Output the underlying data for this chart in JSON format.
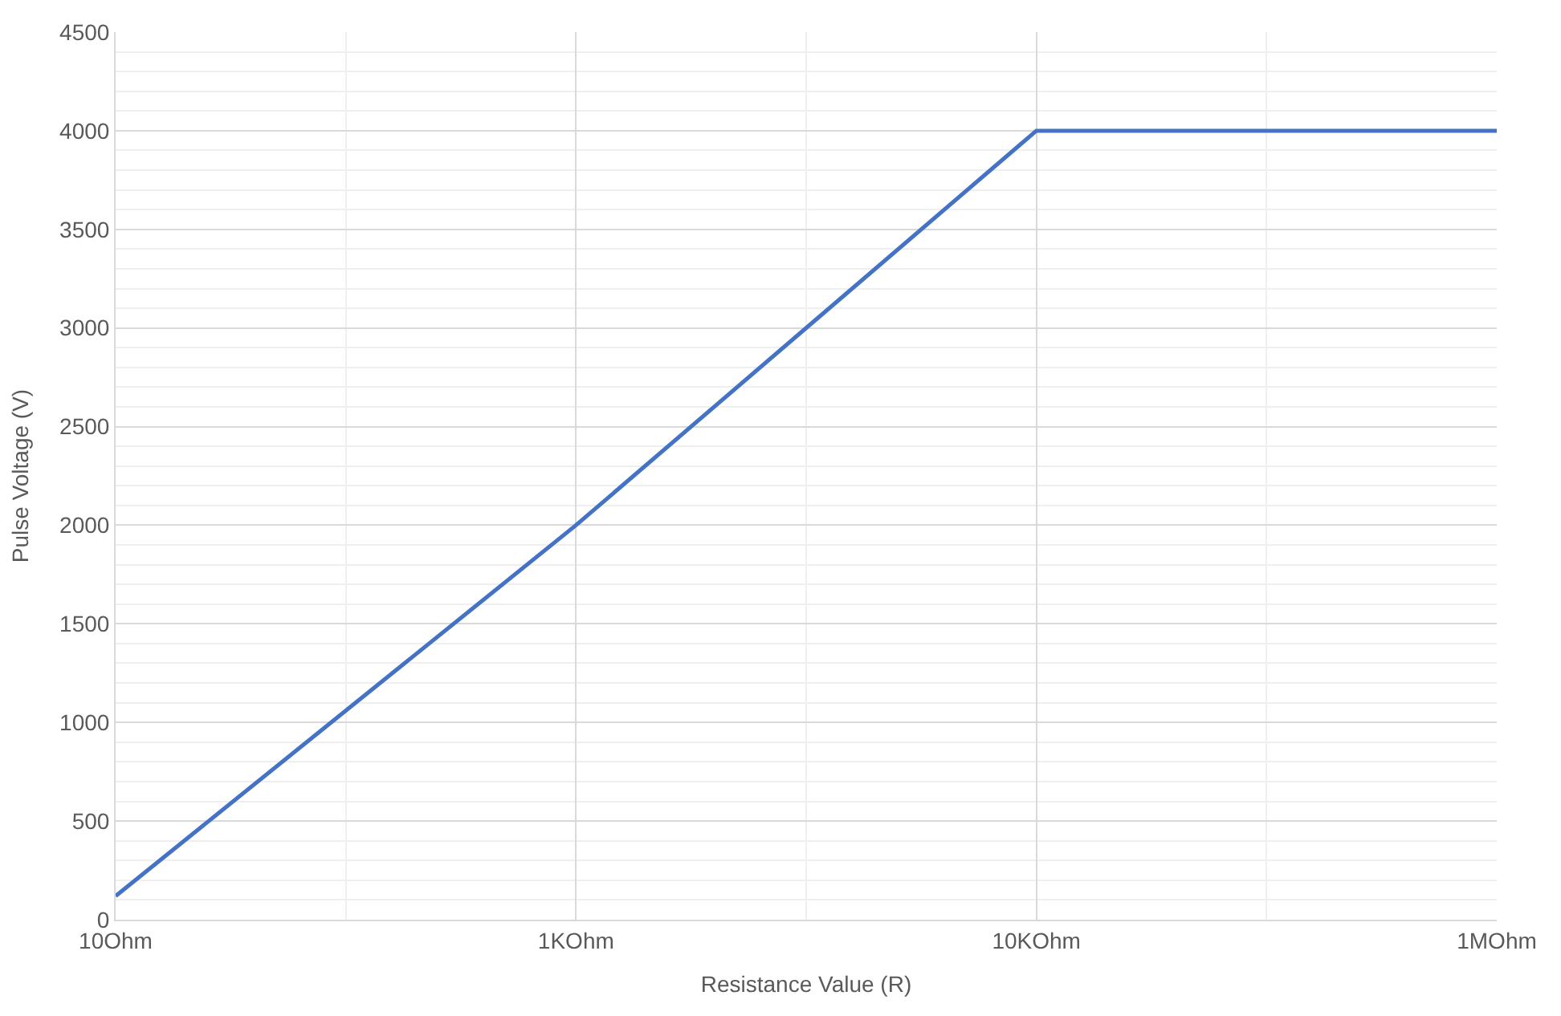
{
  "chart_data": {
    "type": "line",
    "xlabel": "Resistance Value (R)",
    "ylabel": "Pulse Voltage (V)",
    "categories": [
      "10Ohm",
      "1KOhm",
      "10KOhm",
      "1MOhm"
    ],
    "series": [
      {
        "color": "#4472c4",
        "values": [
          120,
          2000,
          4000,
          4000
        ]
      }
    ],
    "ylim": [
      0,
      4500
    ],
    "yticks": [
      0,
      500,
      1000,
      1500,
      2000,
      2500,
      3000,
      3500,
      4000,
      4500
    ],
    "grid": true,
    "marker": "none",
    "line_style": "solid"
  }
}
